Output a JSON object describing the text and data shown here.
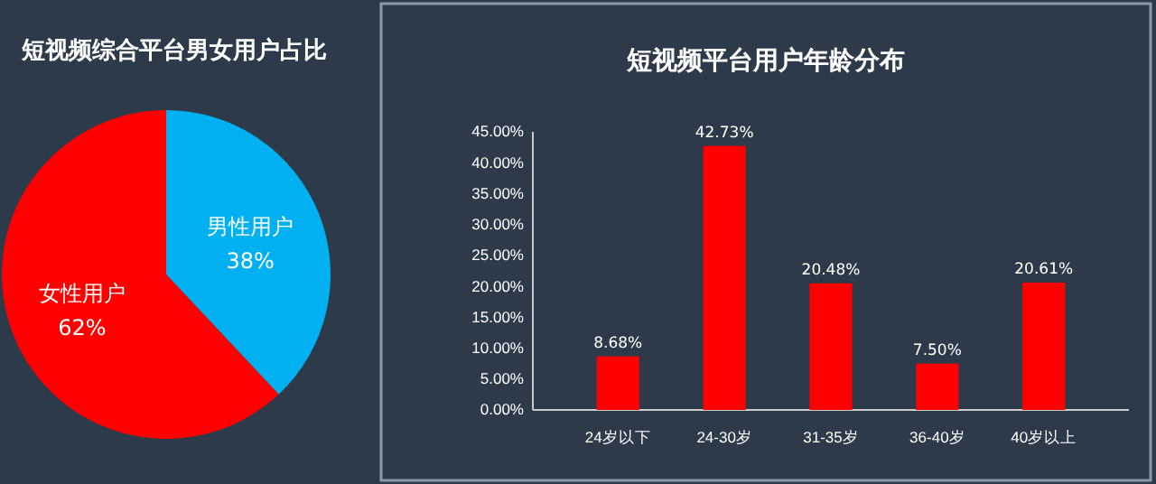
{
  "chart_data": [
    {
      "type": "pie",
      "title": "短视频综合平台男女用户占比",
      "categories": [
        "男性用户",
        "女性用户"
      ],
      "values": [
        38,
        62
      ],
      "colors": [
        "#00b0f0",
        "#ff0000"
      ],
      "value_labels": [
        "38%",
        "62%"
      ]
    },
    {
      "type": "bar",
      "title": "短视频平台用户年龄分布",
      "categories": [
        "24岁以下",
        "24-30岁",
        "31-35岁",
        "36-40岁",
        "40岁以上"
      ],
      "values": [
        8.68,
        42.73,
        20.48,
        7.5,
        20.61
      ],
      "value_labels": [
        "8.68%",
        "42.73%",
        "20.48%",
        "7.50%",
        "20.61%"
      ],
      "color": "#ff0000",
      "ylim": [
        0,
        45
      ],
      "yticks": [
        {
          "value": 0,
          "label": "0.00%"
        },
        {
          "value": 5,
          "label": "5.00%"
        },
        {
          "value": 10,
          "label": "10.00%"
        },
        {
          "value": 15,
          "label": "15.00%"
        },
        {
          "value": 20,
          "label": "20.00%"
        },
        {
          "value": 25,
          "label": "25.00%"
        },
        {
          "value": 30,
          "label": "30.00%"
        },
        {
          "value": 35,
          "label": "35.00%"
        },
        {
          "value": 40,
          "label": "40.00%"
        },
        {
          "value": 45,
          "label": "45.00%"
        }
      ],
      "grid": false
    }
  ]
}
